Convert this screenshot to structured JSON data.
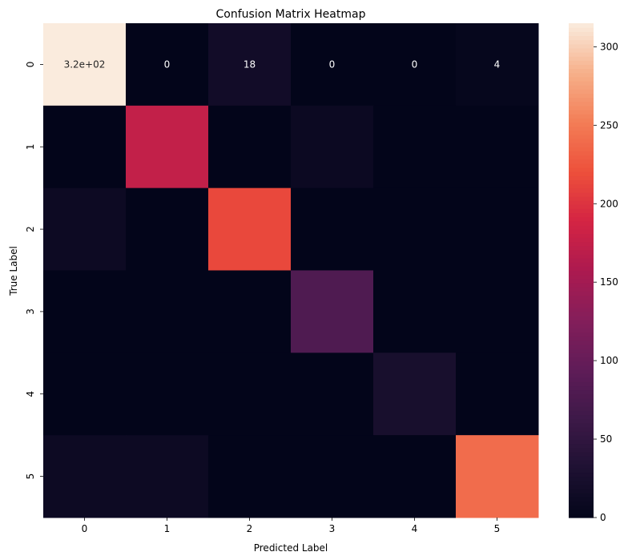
{
  "chart_data": {
    "type": "heatmap",
    "title": "Confusion Matrix Heatmap",
    "xlabel": "Predicted Label",
    "ylabel": "True Label",
    "x_categories": [
      "0",
      "1",
      "2",
      "3",
      "4",
      "5"
    ],
    "y_categories": [
      "0",
      "1",
      "2",
      "3",
      "4",
      "5"
    ],
    "values": [
      [
        315,
        0,
        18,
        0,
        0,
        4
      ],
      [
        0,
        175,
        0,
        10,
        0,
        0
      ],
      [
        12,
        0,
        215,
        0,
        0,
        0
      ],
      [
        0,
        0,
        0,
        80,
        0,
        0
      ],
      [
        0,
        0,
        0,
        0,
        25,
        0
      ],
      [
        12,
        12,
        0,
        0,
        0,
        240
      ]
    ],
    "annotated_row": 0,
    "annotations": [
      "3.2e+02",
      "0",
      "18",
      "0",
      "0",
      "4"
    ],
    "colorbar": {
      "min": 0,
      "max": 315,
      "ticks": [
        0,
        50,
        100,
        150,
        200,
        250,
        300
      ]
    },
    "colormap": "rocket"
  }
}
